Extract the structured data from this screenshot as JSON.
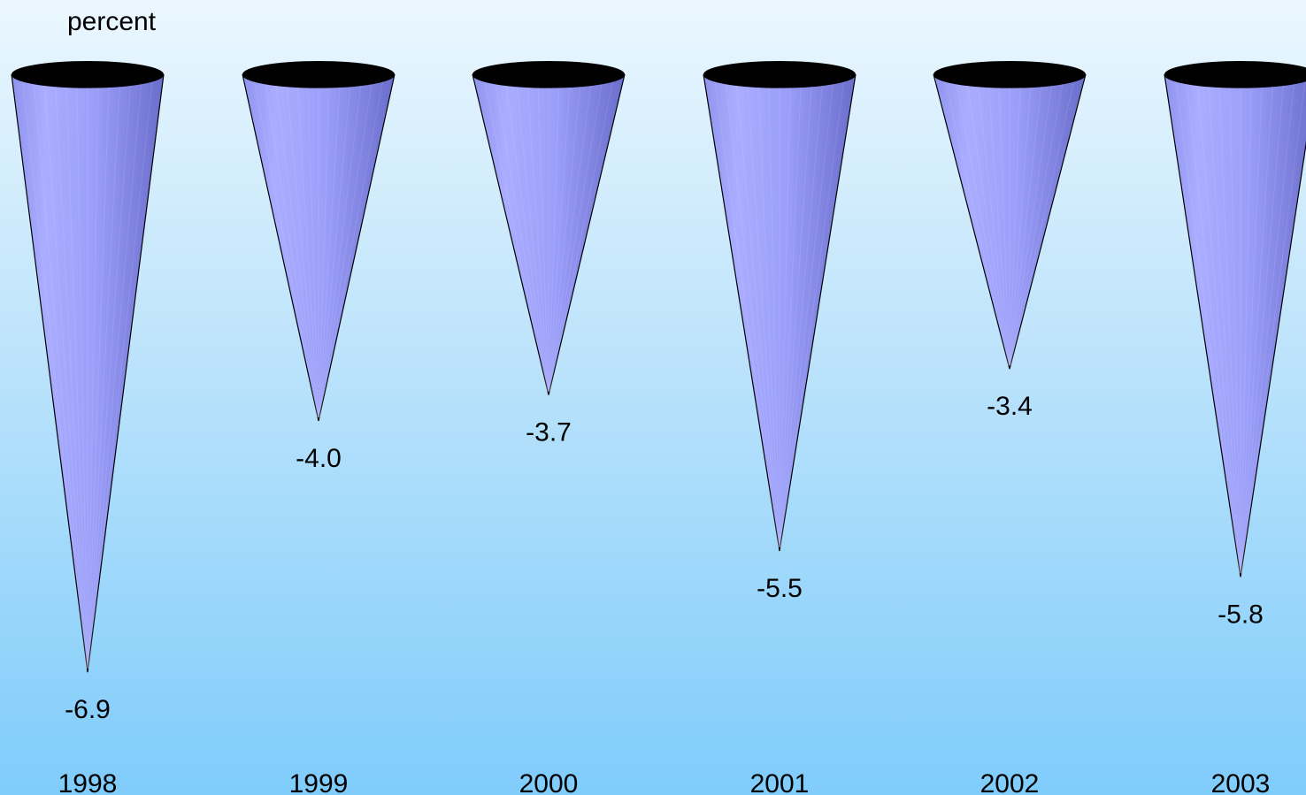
{
  "chart_data": {
    "type": "bar",
    "bar_shape": "inverted-cone",
    "unit_label": "percent",
    "categories": [
      "1998",
      "1999",
      "2000",
      "2001",
      "2002",
      "2003"
    ],
    "values": [
      -6.9,
      -4.0,
      -3.7,
      -5.5,
      -3.4,
      -5.8
    ],
    "value_labels": [
      "-6.9",
      "-4.0",
      "-3.7",
      "-5.5",
      "-3.4",
      "-5.8"
    ],
    "colors": {
      "cone_light": "#a9acff",
      "cone_mid": "#9296f2",
      "cone_dark": "#6f72cf",
      "cone_top": "#000000"
    },
    "legend": "none",
    "grid": false
  }
}
